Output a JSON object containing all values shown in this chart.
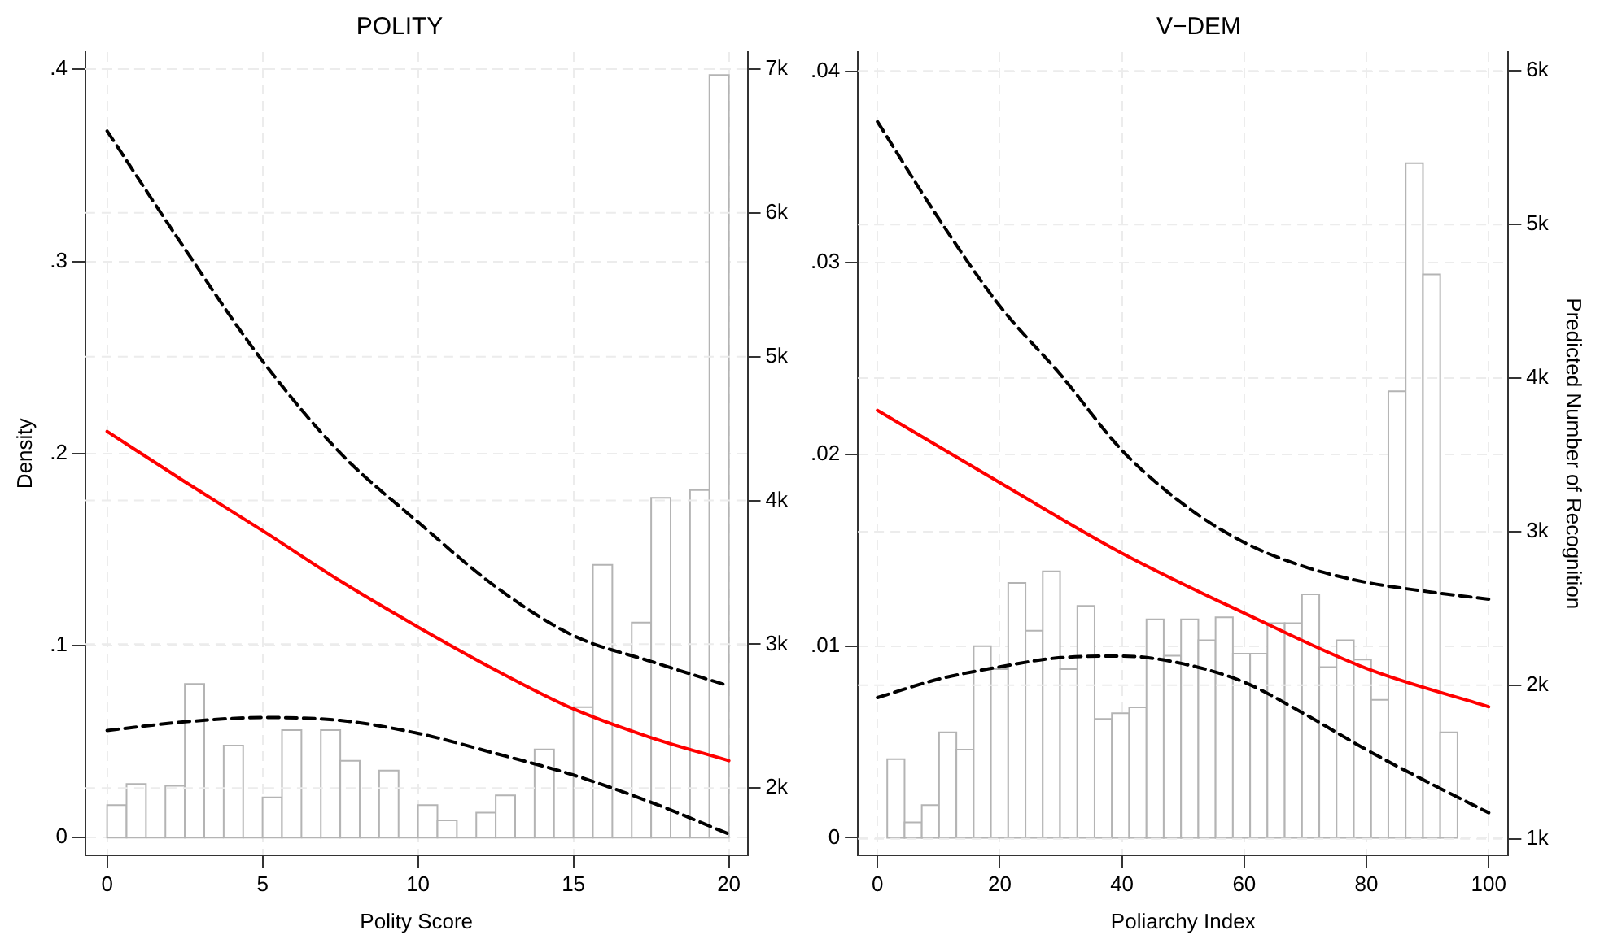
{
  "chart_data": [
    {
      "type": "histogram",
      "title": "POLITY",
      "xlabel": "Polity Score",
      "ylabel": "Density",
      "grid": true,
      "color": "#b4b4b4",
      "bins": [
        0,
        0.625,
        1.25,
        1.875,
        2.5,
        3.125,
        3.75,
        4.375,
        5,
        5.625,
        6.25,
        6.875,
        7.5,
        8.125,
        8.75,
        9.375,
        10,
        10.625,
        11.25,
        11.875,
        12.5,
        13.125,
        13.75,
        14.375,
        15,
        15.625,
        16.25,
        16.875,
        17.5,
        18.125,
        18.75,
        19.375,
        20
      ],
      "values": [
        0.017,
        0.028,
        0,
        0.027,
        0.08,
        0,
        0.048,
        0,
        0.021,
        0.056,
        0,
        0.056,
        0.04,
        0,
        0.035,
        0,
        0.017,
        0.009,
        0,
        0.013,
        0.022,
        0,
        0.046,
        0,
        0.068,
        0.142,
        0,
        0.112,
        0.177,
        0,
        0.181,
        0.397
      ],
      "xlim": [
        -0.7,
        20.6
      ],
      "xticks": [
        0,
        5,
        10,
        15,
        20
      ],
      "ylim": [
        -0.009,
        0.409
      ],
      "yticks": [
        0,
        {
          "value": 0.1,
          "label": ".1"
        },
        {
          "value": 0.2,
          "label": ".2"
        },
        {
          "value": 0.3,
          "label": ".3"
        },
        {
          "value": 0.4,
          "label": ".4"
        }
      ],
      "y2lim": [
        1534,
        7119
      ],
      "y2ticks": [
        {
          "value": 2000,
          "label": "2k"
        },
        {
          "value": 3000,
          "label": "3k"
        },
        {
          "value": 4000,
          "label": "4k"
        },
        {
          "value": 5000,
          "label": "5k"
        },
        {
          "value": 6000,
          "label": "6k"
        },
        {
          "value": 7000,
          "label": "7k"
        }
      ],
      "series": [
        {
          "type": "line",
          "axis": "y2",
          "color": "#ff0000",
          "line_style": "solid",
          "x": [
            0,
            2.5,
            5,
            7.5,
            10,
            12.5,
            15,
            17.5,
            20
          ],
          "values": [
            4480,
            4130,
            3790,
            3440,
            3120,
            2820,
            2550,
            2350,
            2190
          ]
        },
        {
          "type": "line",
          "axis": "y2",
          "color": "#000000",
          "line_style": "dashed",
          "x": [
            0,
            2.5,
            5,
            7.5,
            10,
            12.5,
            15,
            17.5,
            20
          ],
          "values": [
            6570,
            5750,
            4970,
            4330,
            3850,
            3400,
            3060,
            2880,
            2710
          ]
        },
        {
          "type": "line",
          "axis": "y2",
          "color": "#000000",
          "line_style": "dashed",
          "x": [
            0,
            2.5,
            5,
            7.5,
            10,
            12.5,
            15,
            17.5,
            20
          ],
          "values": [
            2400,
            2460,
            2490,
            2470,
            2380,
            2240,
            2090,
            1900,
            1680
          ]
        }
      ]
    },
    {
      "type": "histogram",
      "title": "V−DEM",
      "xlabel": "Poliarchy Index",
      "y2label": "Predicted Number of Recognition",
      "grid": true,
      "color": "#b4b4b4",
      "bins": [
        1.6,
        4.43,
        7.25,
        10.08,
        12.91,
        15.74,
        18.56,
        21.39,
        24.22,
        27.04,
        29.87,
        32.7,
        35.52,
        38.35,
        41.18,
        44.01,
        46.83,
        49.66,
        52.49,
        55.31,
        58.14,
        60.97,
        63.79,
        66.62,
        69.45,
        72.28,
        75.1,
        77.93,
        80.76,
        83.58,
        86.41,
        89.24,
        92.06,
        94.89
      ],
      "values": [
        0.0041,
        0.0008,
        0.0017,
        0.0055,
        0.0046,
        0.01,
        0.0088,
        0.0133,
        0.0108,
        0.0139,
        0.0088,
        0.0121,
        0.0062,
        0.0065,
        0.0068,
        0.0114,
        0.0095,
        0.0114,
        0.0103,
        0.0115,
        0.0096,
        0.0096,
        0.0112,
        0.0112,
        0.0127,
        0.0089,
        0.0103,
        0.0093,
        0.0072,
        0.0233,
        0.0352,
        0.0294,
        0.0055
      ],
      "xlim": [
        -3.2,
        103.2
      ],
      "xticks": [
        0,
        20,
        40,
        60,
        80,
        100
      ],
      "ylim": [
        -0.0009,
        0.041
      ],
      "yticks": [
        0,
        {
          "value": 0.01,
          "label": ".01"
        },
        {
          "value": 0.02,
          "label": ".02"
        },
        {
          "value": 0.03,
          "label": ".03"
        },
        {
          "value": 0.04,
          "label": ".04"
        }
      ],
      "y2lim": [
        895,
        6123
      ],
      "y2ticks": [
        {
          "value": 1000,
          "label": "1k"
        },
        {
          "value": 2000,
          "label": "2k"
        },
        {
          "value": 3000,
          "label": "3k"
        },
        {
          "value": 4000,
          "label": "4k"
        },
        {
          "value": 5000,
          "label": "5k"
        },
        {
          "value": 6000,
          "label": "6k"
        }
      ],
      "series": [
        {
          "type": "line",
          "axis": "y2",
          "color": "#ff0000",
          "line_style": "solid",
          "x": [
            0,
            20,
            40,
            60,
            80,
            100
          ],
          "values": [
            3790,
            3320,
            2860,
            2470,
            2110,
            1860
          ]
        },
        {
          "type": "line",
          "axis": "y2",
          "color": "#000000",
          "line_style": "dashed",
          "x": [
            0,
            10,
            20,
            30,
            40,
            50,
            60,
            70,
            80,
            90,
            100
          ],
          "values": [
            5670,
            5040,
            4470,
            4020,
            3530,
            3180,
            2930,
            2770,
            2670,
            2610,
            2560
          ]
        },
        {
          "type": "line",
          "axis": "y2",
          "color": "#000000",
          "line_style": "dashed",
          "x": [
            0,
            10,
            20,
            30,
            40,
            50,
            60,
            70,
            80,
            90,
            100
          ],
          "values": [
            1920,
            2040,
            2120,
            2180,
            2190,
            2140,
            2020,
            1810,
            1580,
            1370,
            1170
          ]
        }
      ]
    }
  ]
}
